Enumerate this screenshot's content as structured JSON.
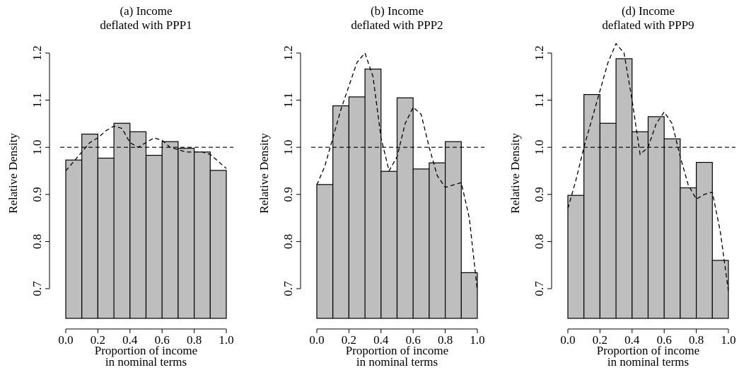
{
  "chart_data": [
    {
      "type": "histogram",
      "title": [
        "(a) Income",
        "deflated with PPP1"
      ],
      "xlabel": [
        "Proportion of income",
        "in nominal terms"
      ],
      "ylabel": "Relative Density",
      "bins": [
        0,
        0.1,
        0.2,
        0.3,
        0.4,
        0.5,
        0.6,
        0.7,
        0.8,
        0.9,
        1
      ],
      "values": [
        0.973,
        1.028,
        0.977,
        1.051,
        1.033,
        0.983,
        1.012,
        0.998,
        0.99,
        0.951
      ],
      "color": "#bebebe",
      "curve": {
        "x": [
          0,
          0.05,
          0.1,
          0.15,
          0.2,
          0.25,
          0.3,
          0.35,
          0.4,
          0.45,
          0.5,
          0.55,
          0.6,
          0.65,
          0.7,
          0.75,
          0.8,
          0.85,
          0.9,
          0.95,
          1
        ],
        "values": [
          0.95,
          0.97,
          0.99,
          1.01,
          1.02,
          1.035,
          1.045,
          1.04,
          1.01,
          1.0,
          1.01,
          1.02,
          1.015,
          1.0,
          0.995,
          0.99,
          0.99,
          0.99,
          0.985,
          0.97,
          0.955
        ]
      },
      "hline": 1,
      "xlim": [
        0,
        1
      ],
      "xticks": [
        {
          "value": 0,
          "label": "0.0"
        },
        0.2,
        0.4,
        0.6,
        0.8,
        {
          "value": 1,
          "label": "1.0"
        }
      ],
      "ylim": [
        0.637,
        1.23
      ],
      "yticks": [
        0.7,
        0.8,
        0.9,
        {
          "value": 1,
          "label": "1.0"
        },
        1.1,
        1.2
      ]
    },
    {
      "type": "histogram",
      "title": [
        "(b) Income",
        "deflated with PPP2"
      ],
      "xlabel": [
        "Proportion of income",
        "in nominal terms"
      ],
      "ylabel": "Relative Density",
      "bins": [
        0,
        0.1,
        0.2,
        0.3,
        0.4,
        0.5,
        0.6,
        0.7,
        0.8,
        0.9,
        1
      ],
      "values": [
        0.921,
        1.088,
        1.107,
        1.166,
        0.949,
        1.105,
        0.954,
        0.967,
        1.012,
        0.734
      ],
      "color": "#bebebe",
      "curve": {
        "x": [
          0,
          0.05,
          0.1,
          0.15,
          0.2,
          0.25,
          0.3,
          0.35,
          0.4,
          0.45,
          0.5,
          0.55,
          0.6,
          0.65,
          0.7,
          0.75,
          0.8,
          0.85,
          0.9,
          0.95,
          1
        ],
        "values": [
          0.92,
          0.96,
          1.02,
          1.08,
          1.13,
          1.18,
          1.2,
          1.15,
          1.02,
          0.95,
          0.98,
          1.05,
          1.085,
          1.07,
          1.0,
          0.94,
          0.915,
          0.92,
          0.925,
          0.85,
          0.695
        ]
      },
      "hline": 1,
      "xlim": [
        0,
        1
      ],
      "xticks": [
        {
          "value": 0,
          "label": "0.0"
        },
        0.2,
        0.4,
        0.6,
        0.8,
        {
          "value": 1,
          "label": "1.0"
        }
      ],
      "ylim": [
        0.637,
        1.23
      ],
      "yticks": [
        0.7,
        0.8,
        0.9,
        {
          "value": 1,
          "label": "1.0"
        },
        1.1,
        1.2
      ]
    },
    {
      "type": "histogram",
      "title": [
        "(d) Income",
        "deflated with PPP9"
      ],
      "xlabel": [
        "Proportion of income",
        "in nominal terms"
      ],
      "ylabel": "Relative Density",
      "bins": [
        0,
        0.1,
        0.2,
        0.3,
        0.4,
        0.5,
        0.6,
        0.7,
        0.8,
        0.9,
        1
      ],
      "values": [
        0.898,
        1.112,
        1.051,
        1.188,
        1.033,
        1.065,
        1.018,
        0.914,
        0.968,
        0.76
      ],
      "color": "#bebebe",
      "curve": {
        "x": [
          0,
          0.05,
          0.1,
          0.15,
          0.2,
          0.25,
          0.3,
          0.35,
          0.4,
          0.45,
          0.5,
          0.55,
          0.6,
          0.65,
          0.7,
          0.75,
          0.8,
          0.85,
          0.9,
          0.95,
          1
        ],
        "values": [
          0.87,
          0.93,
          1.0,
          1.06,
          1.12,
          1.18,
          1.22,
          1.2,
          1.1,
          0.985,
          1.0,
          1.05,
          1.075,
          1.05,
          0.98,
          0.92,
          0.89,
          0.9,
          0.905,
          0.82,
          0.695
        ]
      },
      "hline": 1,
      "xlim": [
        0,
        1
      ],
      "xticks": [
        {
          "value": 0,
          "label": "0.0"
        },
        0.2,
        0.4,
        0.6,
        0.8,
        {
          "value": 1,
          "label": "1.0"
        }
      ],
      "ylim": [
        0.637,
        1.23
      ],
      "yticks": [
        0.7,
        0.8,
        0.9,
        {
          "value": 1,
          "label": "1.0"
        },
        1.1,
        1.2
      ]
    }
  ]
}
